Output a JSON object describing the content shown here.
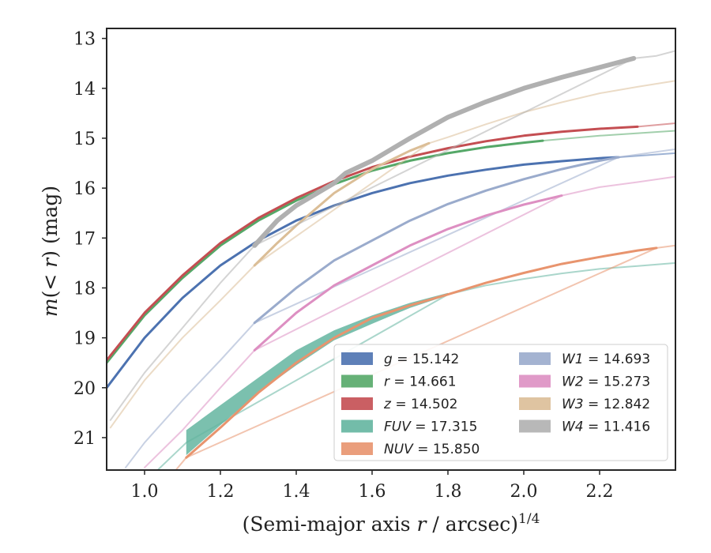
{
  "chart_data": {
    "type": "line",
    "xlabel": "(Semi-major axis r / arcsec)",
    "xlabel_italic_var": "r",
    "xlabel_exponent": "1/4",
    "ylabel": "m(< r) (mag)",
    "xlim": [
      0.9,
      2.4
    ],
    "ylim": [
      21.65,
      12.8
    ],
    "y_inverted": true,
    "x_ticks": [
      "1.0",
      "1.2",
      "1.4",
      "1.6",
      "1.8",
      "2.0",
      "2.2"
    ],
    "y_ticks": [
      "13",
      "14",
      "15",
      "16",
      "17",
      "18",
      "19",
      "20",
      "21"
    ],
    "grid": false,
    "legend_placement": "lower-right",
    "legend_columns": 2,
    "series": [
      {
        "name": "g",
        "value": "15.142",
        "color": "#4c72b0",
        "measured": [
          [
            0.9,
            20.0
          ],
          [
            1.0,
            19.0
          ],
          [
            1.1,
            18.2
          ],
          [
            1.2,
            17.55
          ],
          [
            1.3,
            17.05
          ],
          [
            1.4,
            16.65
          ],
          [
            1.5,
            16.35
          ],
          [
            1.6,
            16.1
          ],
          [
            1.7,
            15.9
          ],
          [
            1.8,
            15.75
          ],
          [
            1.9,
            15.63
          ],
          [
            2.0,
            15.53
          ],
          [
            2.1,
            15.46
          ],
          [
            2.2,
            15.4
          ],
          [
            2.25,
            15.38
          ]
        ],
        "model": [
          [
            2.25,
            15.38
          ],
          [
            2.4,
            15.3
          ]
        ]
      },
      {
        "name": "r",
        "value": "14.661",
        "color": "#55a868",
        "measured": [
          [
            0.9,
            19.5
          ],
          [
            1.0,
            18.55
          ],
          [
            1.1,
            17.8
          ],
          [
            1.2,
            17.15
          ],
          [
            1.3,
            16.65
          ],
          [
            1.4,
            16.25
          ],
          [
            1.5,
            15.92
          ],
          [
            1.6,
            15.65
          ],
          [
            1.7,
            15.45
          ],
          [
            1.8,
            15.3
          ],
          [
            1.9,
            15.18
          ],
          [
            2.0,
            15.09
          ],
          [
            2.05,
            15.05
          ]
        ],
        "model": [
          [
            2.05,
            15.05
          ],
          [
            2.2,
            14.95
          ],
          [
            2.4,
            14.85
          ]
        ]
      },
      {
        "name": "z",
        "value": "14.502",
        "color": "#c44e52",
        "measured": [
          [
            0.9,
            19.45
          ],
          [
            1.0,
            18.5
          ],
          [
            1.1,
            17.75
          ],
          [
            1.2,
            17.1
          ],
          [
            1.3,
            16.6
          ],
          [
            1.4,
            16.2
          ],
          [
            1.5,
            15.86
          ],
          [
            1.6,
            15.58
          ],
          [
            1.7,
            15.37
          ],
          [
            1.8,
            15.2
          ],
          [
            1.9,
            15.06
          ],
          [
            2.0,
            14.95
          ],
          [
            2.1,
            14.87
          ],
          [
            2.2,
            14.81
          ],
          [
            2.3,
            14.77
          ]
        ],
        "model": [
          [
            2.3,
            14.77
          ],
          [
            2.4,
            14.7
          ]
        ]
      },
      {
        "name": "FUV",
        "value": "17.315",
        "color": "#64b5a0",
        "measured_upper": [
          [
            1.11,
            20.85
          ],
          [
            1.2,
            20.35
          ],
          [
            1.3,
            19.8
          ],
          [
            1.4,
            19.25
          ],
          [
            1.5,
            18.85
          ],
          [
            1.6,
            18.55
          ],
          [
            1.7,
            18.3
          ],
          [
            1.8,
            18.1
          ]
        ],
        "measured_lower": [
          [
            1.11,
            21.35
          ],
          [
            1.2,
            20.75
          ],
          [
            1.3,
            20.1
          ],
          [
            1.4,
            19.55
          ],
          [
            1.5,
            19.05
          ],
          [
            1.6,
            18.72
          ],
          [
            1.7,
            18.4
          ],
          [
            1.8,
            18.15
          ]
        ],
        "model": [
          [
            0.95,
            22.4
          ],
          [
            1.0,
            21.9
          ],
          [
            1.11,
            21.1
          ],
          [
            1.8,
            18.13
          ],
          [
            1.9,
            17.95
          ],
          [
            2.0,
            17.82
          ],
          [
            2.1,
            17.71
          ],
          [
            2.2,
            17.62
          ],
          [
            2.3,
            17.56
          ],
          [
            2.4,
            17.5
          ]
        ]
      },
      {
        "name": "NUV",
        "value": "15.850",
        "color": "#e8946e",
        "measured": [
          [
            1.11,
            21.4
          ],
          [
            1.2,
            20.8
          ],
          [
            1.3,
            20.1
          ],
          [
            1.4,
            19.5
          ],
          [
            1.5,
            19.0
          ],
          [
            1.6,
            18.6
          ],
          [
            1.7,
            18.35
          ],
          [
            1.8,
            18.13
          ],
          [
            1.9,
            17.9
          ],
          [
            2.0,
            17.7
          ],
          [
            2.1,
            17.52
          ],
          [
            2.2,
            17.38
          ],
          [
            2.3,
            17.25
          ],
          [
            2.35,
            17.2
          ]
        ],
        "model": [
          [
            1.0,
            22.4
          ],
          [
            1.11,
            21.4
          ],
          [
            2.35,
            17.2
          ],
          [
            2.4,
            17.15
          ]
        ]
      },
      {
        "name": "W1",
        "value": "14.693",
        "color": "#9aabcc",
        "measured": [
          [
            1.29,
            18.7
          ],
          [
            1.4,
            18.0
          ],
          [
            1.5,
            17.45
          ],
          [
            1.6,
            17.05
          ],
          [
            1.7,
            16.65
          ],
          [
            1.8,
            16.32
          ],
          [
            1.9,
            16.05
          ],
          [
            2.0,
            15.82
          ],
          [
            2.1,
            15.62
          ],
          [
            2.2,
            15.45
          ],
          [
            2.25,
            15.38
          ]
        ],
        "model": [
          [
            0.95,
            21.6
          ],
          [
            1.0,
            21.1
          ],
          [
            1.1,
            20.25
          ],
          [
            1.2,
            19.45
          ],
          [
            1.29,
            18.7
          ],
          [
            2.25,
            15.38
          ],
          [
            2.4,
            15.22
          ]
        ]
      },
      {
        "name": "W2",
        "value": "15.273",
        "color": "#dd8fc2",
        "measured": [
          [
            1.29,
            19.25
          ],
          [
            1.4,
            18.5
          ],
          [
            1.5,
            17.95
          ],
          [
            1.6,
            17.55
          ],
          [
            1.7,
            17.15
          ],
          [
            1.8,
            16.82
          ],
          [
            1.9,
            16.55
          ],
          [
            2.0,
            16.33
          ],
          [
            2.1,
            16.15
          ]
        ],
        "model": [
          [
            1.0,
            21.6
          ],
          [
            1.1,
            20.85
          ],
          [
            1.2,
            20.0
          ],
          [
            1.29,
            19.25
          ],
          [
            2.1,
            16.15
          ],
          [
            2.2,
            15.98
          ],
          [
            2.3,
            15.88
          ],
          [
            2.4,
            15.77
          ]
        ]
      },
      {
        "name": "W3",
        "value": "12.842",
        "color": "#dbbe97",
        "measured": [
          [
            1.29,
            17.55
          ],
          [
            1.35,
            17.1
          ],
          [
            1.4,
            16.75
          ],
          [
            1.5,
            16.1
          ],
          [
            1.6,
            15.62
          ],
          [
            1.7,
            15.25
          ],
          [
            1.75,
            15.1
          ]
        ],
        "model": [
          [
            0.91,
            20.8
          ],
          [
            1.0,
            19.85
          ],
          [
            1.1,
            19.0
          ],
          [
            1.2,
            18.25
          ],
          [
            1.29,
            17.55
          ],
          [
            1.75,
            15.1
          ],
          [
            1.8,
            14.98
          ],
          [
            1.9,
            14.72
          ],
          [
            2.0,
            14.48
          ],
          [
            2.1,
            14.28
          ],
          [
            2.2,
            14.1
          ],
          [
            2.3,
            13.97
          ],
          [
            2.4,
            13.85
          ]
        ]
      },
      {
        "name": "W4",
        "value": "11.416",
        "color": "#b0b0b0",
        "measured": [
          [
            1.29,
            17.15
          ],
          [
            1.35,
            16.65
          ],
          [
            1.4,
            16.35
          ],
          [
            1.5,
            15.9
          ],
          [
            1.53,
            15.7
          ],
          [
            1.6,
            15.45
          ],
          [
            1.7,
            15.0
          ],
          [
            1.8,
            14.58
          ],
          [
            1.9,
            14.27
          ],
          [
            2.0,
            14.0
          ],
          [
            2.1,
            13.78
          ],
          [
            2.2,
            13.58
          ],
          [
            2.29,
            13.4
          ]
        ],
        "model": [
          [
            0.91,
            20.65
          ],
          [
            1.0,
            19.7
          ],
          [
            1.1,
            18.8
          ],
          [
            1.2,
            17.9
          ],
          [
            1.29,
            17.15
          ],
          [
            2.29,
            13.4
          ],
          [
            2.35,
            13.35
          ],
          [
            2.4,
            13.25
          ]
        ]
      }
    ]
  }
}
